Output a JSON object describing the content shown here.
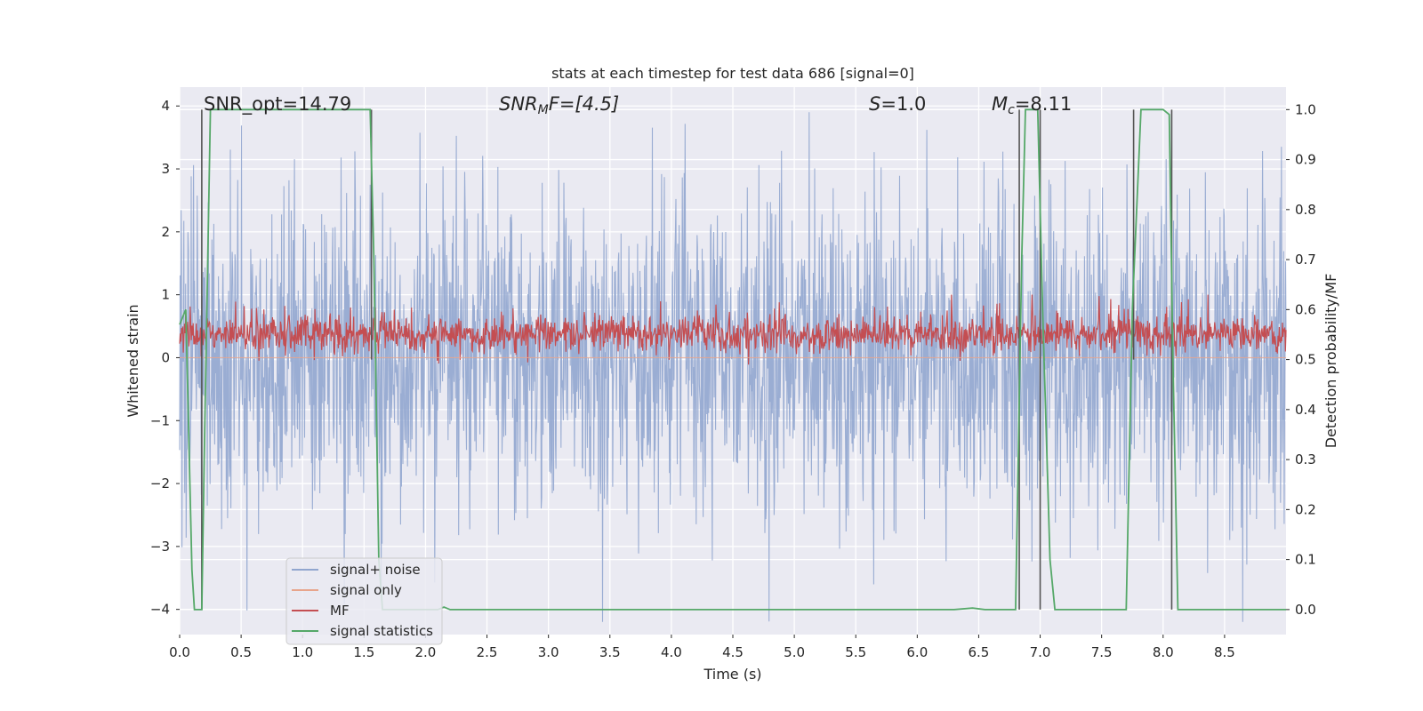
{
  "chart_data": {
    "type": "line",
    "title": "stats at each timestep for test data 686 [signal=0]",
    "xlabel": "Time (s)",
    "ylabel": "Whitened strain",
    "y2label": "Detection probability/MF",
    "xlim": [
      0.0,
      9.0
    ],
    "ylim": [
      -4.4,
      4.3
    ],
    "y2lim": [
      -0.05,
      1.045
    ],
    "xticks": [
      "0.0",
      "0.5",
      "1.0",
      "1.5",
      "2.0",
      "2.5",
      "3.0",
      "3.5",
      "4.0",
      "4.5",
      "5.0",
      "5.5",
      "6.0",
      "6.5",
      "7.0",
      "7.5",
      "8.0",
      "8.5"
    ],
    "xtick_values": [
      0.0,
      0.5,
      1.0,
      1.5,
      2.0,
      2.5,
      3.0,
      3.5,
      4.0,
      4.5,
      5.0,
      5.5,
      6.0,
      6.5,
      7.0,
      7.5,
      8.0,
      8.5
    ],
    "yticks": [
      "4",
      "3",
      "2",
      "1",
      "0",
      "−1",
      "−2",
      "−3",
      "−4"
    ],
    "ytick_values": [
      4,
      3,
      2,
      1,
      0,
      -1,
      -2,
      -3,
      -4
    ],
    "y2ticks": [
      "1.0",
      "0.9",
      "0.8",
      "0.7",
      "0.6",
      "0.5",
      "0.4",
      "0.3",
      "0.2",
      "0.1",
      "0.0"
    ],
    "y2tick_values": [
      1.0,
      0.9,
      0.8,
      0.7,
      0.6,
      0.5,
      0.4,
      0.3,
      0.2,
      0.1,
      0.0
    ],
    "annotations": {
      "snr_opt": "SNR_opt=14.79",
      "snr_mf_main": "SNR",
      "snr_mf_sub": "M",
      "snr_mf_rest": "F=[4.5]",
      "s_var": "S",
      "s_rest": "=1.0",
      "mc_var": "M",
      "mc_sub": "c",
      "mc_rest": "=8.11"
    },
    "legend": {
      "location": "lower-left",
      "entries": [
        {
          "label": "signal+ noise",
          "color": "#91a6cf"
        },
        {
          "label": "signal only",
          "color": "#e8a58c"
        },
        {
          "label": "MF",
          "color": "#c44e52"
        },
        {
          "label": "signal statistics",
          "color": "#55a868"
        }
      ]
    },
    "series": [
      {
        "name": "signal+ noise",
        "axis": "left",
        "kind": "noise",
        "range_approx": [
          -4.2,
          3.9
        ],
        "color": "#91a6cf"
      },
      {
        "name": "signal only",
        "axis": "left",
        "kind": "flat",
        "values_approx": 0.0,
        "color": "#e8a58c"
      },
      {
        "name": "MF",
        "axis": "right",
        "kind": "noise",
        "center_approx": 0.55,
        "range_approx": [
          0.49,
          0.63
        ],
        "color": "#c44e52"
      },
      {
        "name": "signal statistics",
        "axis": "right",
        "color": "#55a868",
        "x": [
          0.0,
          0.05,
          0.1,
          0.12,
          0.18,
          0.2,
          0.25,
          0.3,
          0.9,
          1.55,
          1.58,
          1.62,
          1.65,
          2.1,
          2.15,
          2.2,
          6.3,
          6.45,
          6.55,
          6.8,
          6.85,
          6.88,
          6.98,
          7.02,
          7.08,
          7.12,
          7.7,
          7.75,
          7.82,
          8.0,
          8.05,
          8.08,
          8.12,
          9.0
        ],
        "values": [
          0.57,
          0.6,
          0.08,
          0.0,
          0.0,
          0.3,
          1.0,
          1.0,
          1.0,
          1.0,
          0.7,
          0.1,
          0.0,
          0.0,
          0.005,
          0.0,
          0.0,
          0.003,
          0.0,
          0.0,
          0.7,
          1.0,
          1.0,
          0.6,
          0.1,
          0.0,
          0.0,
          0.6,
          1.0,
          1.0,
          0.99,
          0.5,
          0.0,
          0.0
        ]
      }
    ],
    "event_markers": {
      "axis": "right",
      "color": "#555555",
      "times": [
        0.18,
        1.56,
        6.83,
        7.0,
        7.76,
        8.07
      ],
      "top_values": [
        1.0,
        1.0,
        1.0,
        1.0,
        1.0,
        1.0
      ],
      "bottom_values": [
        0.0,
        0.5,
        0.0,
        0.0,
        0.5,
        0.0
      ]
    }
  }
}
